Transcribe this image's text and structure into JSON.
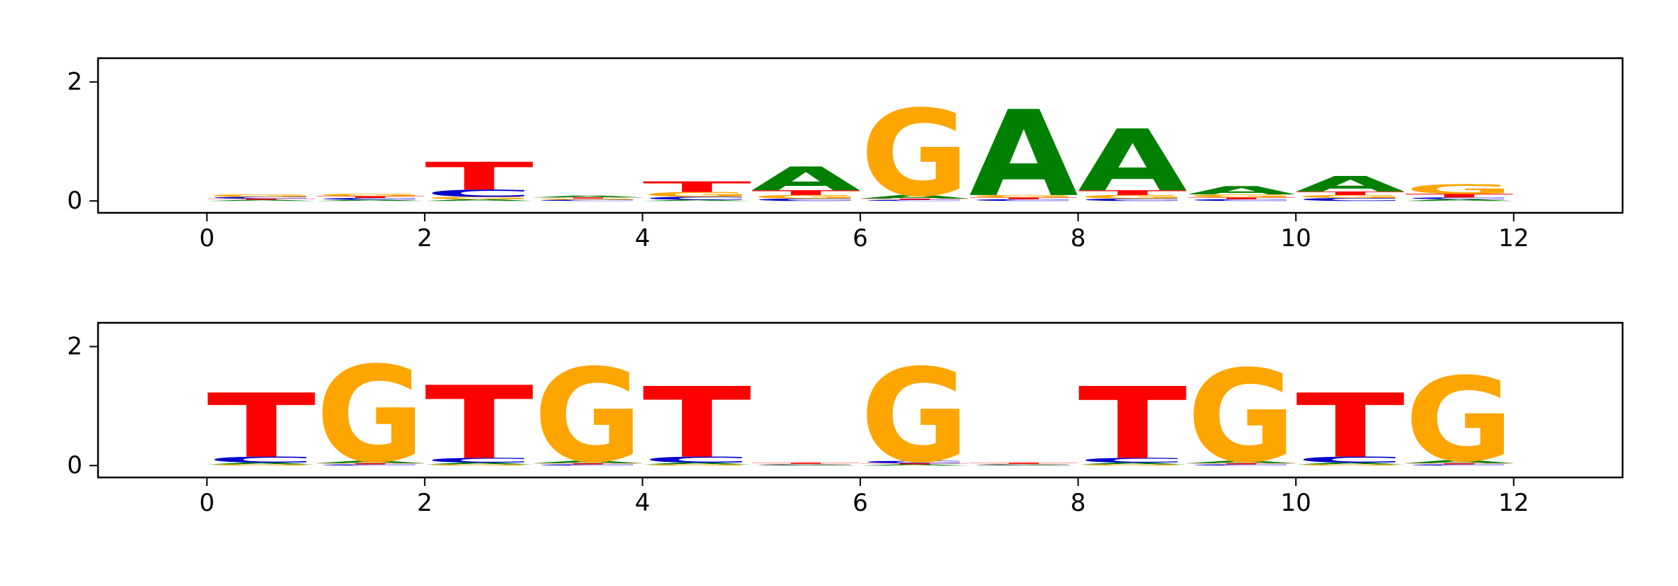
{
  "colors": {
    "A": "#008000",
    "C": "#0000cc",
    "G": "#ffa500",
    "T": "#ff0000"
  },
  "chart_data": [
    {
      "type": "sequence-logo",
      "xlim": [
        -1,
        13
      ],
      "ylim": [
        -0.2,
        2.4
      ],
      "xticks": [
        "0",
        "2",
        "4",
        "6",
        "8",
        "10",
        "12"
      ],
      "yticks": [
        "0",
        "2"
      ],
      "grid": false,
      "positions": [
        {
          "A": 0.02,
          "C": 0.03,
          "G": 0.04,
          "T": 0.02
        },
        {
          "A": 0.02,
          "C": 0.03,
          "G": 0.04,
          "T": 0.03
        },
        {
          "A": 0.03,
          "C": 0.12,
          "G": 0.04,
          "T": 0.47
        },
        {
          "A": 0.03,
          "C": 0.02,
          "G": 0.02,
          "T": 0.02
        },
        {
          "A": 0.02,
          "C": 0.05,
          "G": 0.08,
          "T": 0.18
        },
        {
          "A": 0.4,
          "C": 0.04,
          "G": 0.06,
          "T": 0.08
        },
        {
          "A": 0.06,
          "C": 0.02,
          "G": 1.46,
          "T": 0.02
        },
        {
          "A": 1.45,
          "C": 0.03,
          "G": 0.04,
          "T": 0.03
        },
        {
          "A": 1.04,
          "C": 0.04,
          "G": 0.06,
          "T": 0.08
        },
        {
          "A": 0.14,
          "C": 0.03,
          "G": 0.05,
          "T": 0.03
        },
        {
          "A": 0.26,
          "C": 0.05,
          "G": 0.05,
          "T": 0.06
        },
        {
          "A": 0.03,
          "C": 0.03,
          "G": 0.16,
          "T": 0.06
        }
      ]
    },
    {
      "type": "sequence-logo",
      "xlim": [
        -1,
        13
      ],
      "ylim": [
        -0.2,
        2.4
      ],
      "xticks": [
        "0",
        "2",
        "4",
        "6",
        "8",
        "10",
        "12"
      ],
      "yticks": [
        "0",
        "2"
      ],
      "grid": false,
      "positions": [
        {
          "A": 0.03,
          "C": 0.1,
          "G": 0.02,
          "T": 1.08
        },
        {
          "A": 0.04,
          "C": 0.02,
          "G": 1.62,
          "T": 0.02
        },
        {
          "A": 0.03,
          "C": 0.08,
          "G": 0.02,
          "T": 1.23
        },
        {
          "A": 0.04,
          "C": 0.02,
          "G": 1.58,
          "T": 0.02
        },
        {
          "A": 0.03,
          "C": 0.1,
          "G": 0.02,
          "T": 1.19
        },
        {
          "A": 0.01,
          "C": 0.01,
          "G": 0.01,
          "T": 0.02
        },
        {
          "A": 0.02,
          "C": 0.04,
          "G": 1.58,
          "T": 0.02
        },
        {
          "A": 0.01,
          "C": 0.01,
          "G": 0.01,
          "T": 0.02
        },
        {
          "A": 0.03,
          "C": 0.08,
          "G": 0.02,
          "T": 1.21
        },
        {
          "A": 0.04,
          "C": 0.02,
          "G": 1.56,
          "T": 0.02
        },
        {
          "A": 0.03,
          "C": 0.1,
          "G": 0.02,
          "T": 1.08
        },
        {
          "A": 0.05,
          "C": 0.02,
          "G": 1.42,
          "T": 0.02
        }
      ]
    }
  ]
}
